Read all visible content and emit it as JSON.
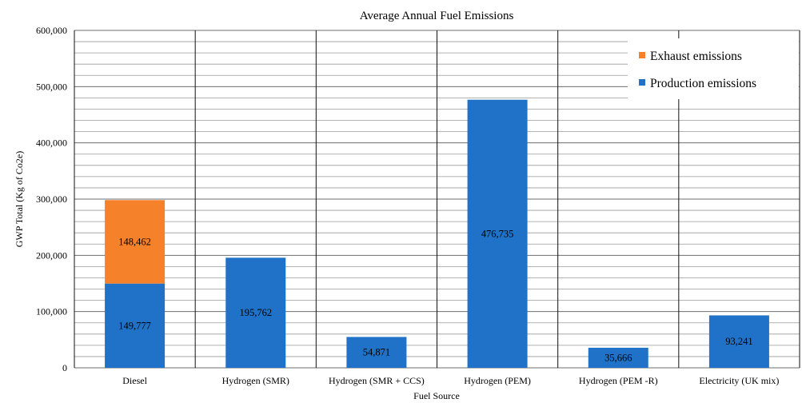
{
  "chart_data": {
    "type": "bar",
    "stacked": true,
    "title": "Average Annual Fuel Emissions",
    "xlabel": "Fuel Source",
    "ylabel": "GWP Total (Kg of Co2e)",
    "categories": [
      "Diesel",
      "Hydrogen (SMR)",
      "Hydrogen (SMR + CCS)",
      "Hydrogen (PEM)",
      "Hydrogen (PEM -R)",
      "Electricity (UK mix)"
    ],
    "series": [
      {
        "name": "Production emissions",
        "color": "#1f72c7",
        "values": [
          149777,
          195762,
          54871,
          476735,
          35666,
          93241
        ],
        "labels": [
          "149,777",
          "195,762",
          "54,871",
          "476,735",
          "35,666",
          "93,241"
        ]
      },
      {
        "name": "Exhaust emissions",
        "color": "#f5812b",
        "values": [
          148462,
          0,
          0,
          0,
          0,
          0
        ],
        "labels": [
          "148,462",
          "",
          "",
          "",
          "",
          ""
        ]
      }
    ],
    "legend_order": [
      "Exhaust emissions",
      "Production emissions"
    ],
    "ylim": [
      0,
      600000
    ],
    "major_ticks": [
      0,
      100000,
      200000,
      300000,
      400000,
      500000,
      600000
    ],
    "tick_labels": [
      "0",
      "100,000",
      "200,000",
      "300,000",
      "400,000",
      "500,000",
      "600,000"
    ],
    "minor_tick_step": 20000,
    "grid": true,
    "legend_position": "top-right"
  }
}
